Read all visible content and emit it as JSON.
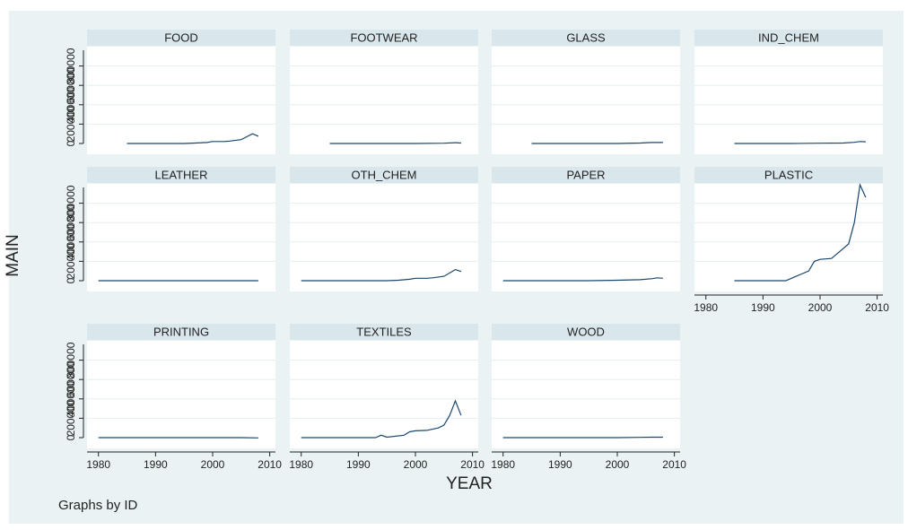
{
  "note": "Graphs by ID",
  "colors": {
    "background": "#eaf2f3",
    "plot_bg": "#ffffff",
    "strip": "#d9e6eb",
    "line": "#1a476f",
    "grid": "#e6edf0",
    "axis": "#222222"
  },
  "chart_data": {
    "type": "line",
    "layout": "small-multiples",
    "xlabel": "YEAR",
    "ylabel": "MAIN",
    "xlim": [
      1978,
      2011
    ],
    "ylim": [
      0,
      1000000
    ],
    "xticks": [
      1980,
      1990,
      2000,
      2010
    ],
    "yticks": [
      0,
      200000,
      400000,
      600000,
      800000
    ],
    "ytick_labels": [
      "0",
      "200000",
      "400000",
      "600000",
      "800000"
    ],
    "grid": true,
    "panels": [
      {
        "name": "FOOD",
        "x": [
          1985,
          1990,
          1995,
          1997,
          1999,
          2000,
          2002,
          2003,
          2005,
          2006,
          2007,
          2008
        ],
        "y": [
          0,
          0,
          0,
          5000,
          10000,
          20000,
          20000,
          25000,
          40000,
          70000,
          100000,
          75000
        ]
      },
      {
        "name": "FOOTWEAR",
        "x": [
          1985,
          1990,
          1995,
          2000,
          2005,
          2007,
          2008
        ],
        "y": [
          0,
          0,
          0,
          0,
          3000,
          8000,
          5000
        ]
      },
      {
        "name": "GLASS",
        "x": [
          1985,
          1990,
          1995,
          2000,
          2004,
          2006,
          2008
        ],
        "y": [
          0,
          0,
          0,
          0,
          5000,
          10000,
          10000
        ]
      },
      {
        "name": "IND_CHEM",
        "x": [
          1985,
          1990,
          1995,
          2000,
          2004,
          2006,
          2007,
          2008
        ],
        "y": [
          0,
          0,
          0,
          3000,
          5000,
          12000,
          20000,
          18000
        ]
      },
      {
        "name": "LEATHER",
        "x": [
          1980,
          1990,
          2000,
          2008
        ],
        "y": [
          0,
          0,
          0,
          0
        ]
      },
      {
        "name": "OTH_CHEM",
        "x": [
          1980,
          1990,
          1995,
          1997,
          1999,
          2000,
          2002,
          2003,
          2005,
          2006,
          2007,
          2008
        ],
        "y": [
          0,
          0,
          0,
          5000,
          15000,
          25000,
          25000,
          30000,
          45000,
          80000,
          115000,
          95000
        ]
      },
      {
        "name": "PAPER",
        "x": [
          1980,
          1990,
          1995,
          2000,
          2004,
          2006,
          2007,
          2008
        ],
        "y": [
          0,
          0,
          0,
          5000,
          10000,
          20000,
          30000,
          25000
        ]
      },
      {
        "name": "PLASTIC",
        "x": [
          1985,
          1990,
          1994,
          1996,
          1998,
          1999,
          2000,
          2002,
          2003,
          2005,
          2006,
          2007,
          2008
        ],
        "y": [
          0,
          0,
          0,
          50000,
          100000,
          200000,
          220000,
          230000,
          280000,
          380000,
          600000,
          990000,
          860000
        ]
      },
      {
        "name": "PRINTING",
        "x": [
          1980,
          1990,
          2000,
          2005,
          2008
        ],
        "y": [
          0,
          0,
          0,
          0,
          -3000
        ]
      },
      {
        "name": "TEXTILES",
        "x": [
          1980,
          1990,
          1993,
          1994,
          1995,
          1998,
          1999,
          2000,
          2002,
          2004,
          2005,
          2006,
          2007,
          2008
        ],
        "y": [
          0,
          0,
          0,
          25000,
          5000,
          25000,
          60000,
          70000,
          75000,
          100000,
          130000,
          230000,
          380000,
          230000
        ]
      },
      {
        "name": "WOOD",
        "x": [
          1980,
          1990,
          2000,
          2004,
          2006,
          2008
        ],
        "y": [
          0,
          0,
          0,
          3000,
          5000,
          5000
        ]
      }
    ]
  }
}
